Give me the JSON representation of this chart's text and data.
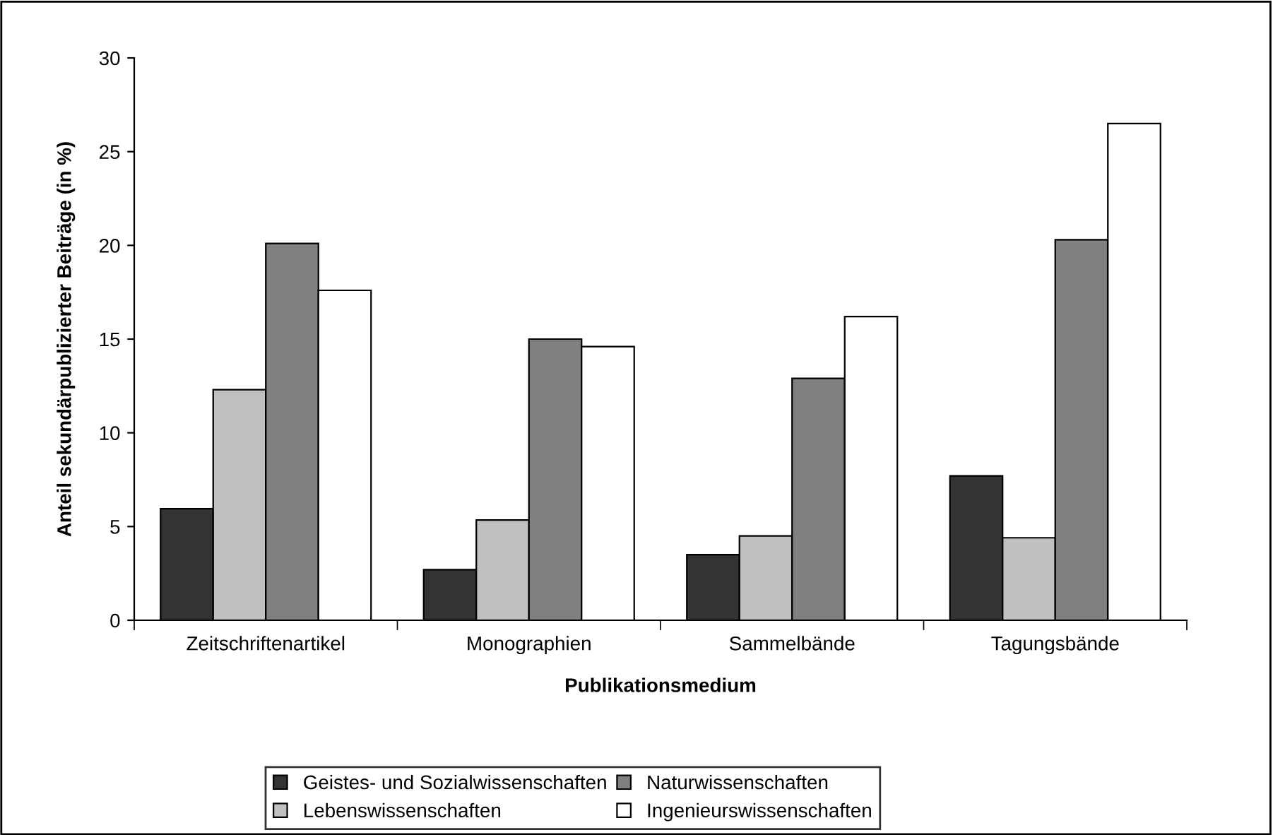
{
  "chart_data": {
    "type": "bar",
    "xlabel": "Publikationsmedium",
    "ylabel": "Anteil sekundärpublizierter Beiträge (in %)",
    "categories": [
      "Zeitschriftenartikel",
      "Monographien",
      "Sammelbände",
      "Tagungsbände"
    ],
    "series": [
      {
        "name": "Geistes- und Sozialwissenschaften",
        "color": "#333333",
        "values": [
          5.95,
          2.7,
          3.5,
          7.7
        ]
      },
      {
        "name": "Lebenswissenschaften",
        "color": "#c0c0c0",
        "values": [
          12.3,
          5.35,
          4.5,
          4.4
        ]
      },
      {
        "name": "Naturwissenschaften",
        "color": "#808080",
        "values": [
          20.1,
          15.0,
          12.9,
          20.3
        ]
      },
      {
        "name": "Ingenieurswissenschaften",
        "color": "#ffffff",
        "values": [
          17.6,
          14.6,
          16.2,
          26.5
        ]
      }
    ],
    "ylim": [
      0,
      30
    ],
    "yticks": [
      0,
      5,
      10,
      15,
      20,
      25,
      30
    ],
    "grid": false,
    "legend": "bottom"
  }
}
